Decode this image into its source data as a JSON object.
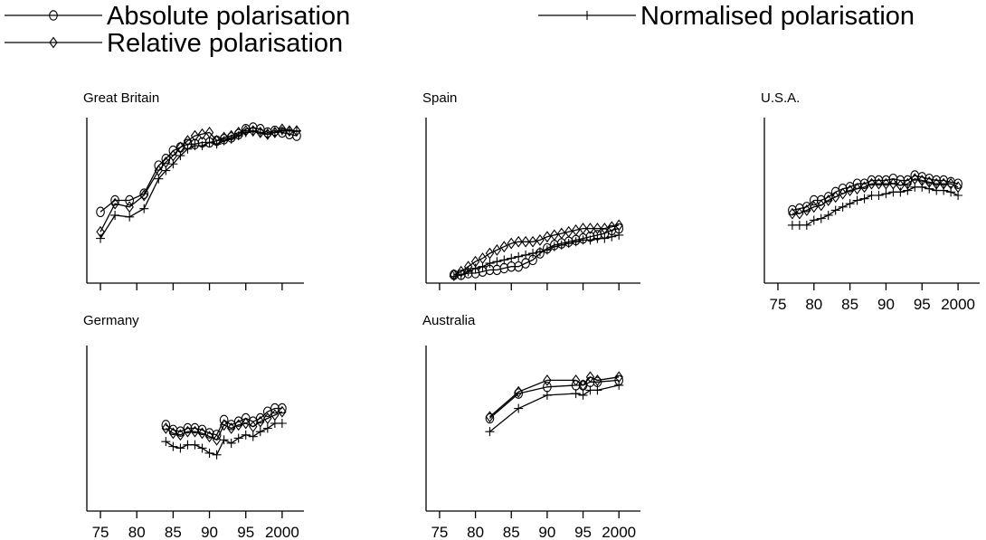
{
  "legend": [
    {
      "name": "Absolute polarisation",
      "marker": "circle"
    },
    {
      "name": "Relative polarisation",
      "marker": "diamond"
    },
    {
      "name": "Normalised polarisation",
      "marker": "plus"
    }
  ],
  "chart_data": [
    {
      "type": "line",
      "title": "Great Britain",
      "xlim": [
        74,
        2003
      ],
      "ylim": [
        0,
        1
      ],
      "xticks": [
        75,
        80,
        85,
        90,
        95,
        2000
      ],
      "xtick_labels": [],
      "series": [
        {
          "name": "Absolute polarisation",
          "marker": "circle",
          "x": [
            75,
            77,
            79,
            81,
            83,
            84,
            85,
            86,
            87,
            88,
            89,
            90,
            91,
            92,
            93,
            94,
            95,
            96,
            97,
            98,
            99,
            2000,
            2001,
            2002
          ],
          "y": [
            0.43,
            0.5,
            0.5,
            0.54,
            0.71,
            0.75,
            0.8,
            0.82,
            0.84,
            0.84,
            0.85,
            0.85,
            0.86,
            0.87,
            0.88,
            0.9,
            0.93,
            0.94,
            0.93,
            0.91,
            0.92,
            0.91,
            0.9,
            0.89
          ]
        },
        {
          "name": "Relative polarisation",
          "marker": "diamond",
          "x": [
            75,
            77,
            79,
            81,
            83,
            84,
            85,
            86,
            87,
            88,
            89,
            90,
            91,
            92,
            93,
            94,
            95,
            96,
            97,
            98,
            99,
            2000,
            2001,
            2002
          ],
          "y": [
            0.31,
            0.48,
            0.46,
            0.53,
            0.68,
            0.73,
            0.77,
            0.82,
            0.86,
            0.89,
            0.9,
            0.91,
            0.86,
            0.88,
            0.89,
            0.91,
            0.92,
            0.92,
            0.91,
            0.9,
            0.91,
            0.93,
            0.92,
            0.92
          ]
        },
        {
          "name": "Normalised polarisation",
          "marker": "plus",
          "x": [
            75,
            77,
            79,
            81,
            83,
            84,
            85,
            86,
            87,
            88,
            89,
            90,
            91,
            92,
            93,
            94,
            95,
            96,
            97,
            98,
            99,
            2000,
            2001,
            2002
          ],
          "y": [
            0.27,
            0.41,
            0.4,
            0.45,
            0.63,
            0.68,
            0.72,
            0.77,
            0.81,
            0.83,
            0.83,
            0.85,
            0.84,
            0.86,
            0.87,
            0.89,
            0.91,
            0.92,
            0.91,
            0.9,
            0.91,
            0.92,
            0.92,
            0.92
          ]
        }
      ]
    },
    {
      "type": "line",
      "title": "Spain",
      "xlim": [
        74,
        2003
      ],
      "ylim": [
        0,
        1
      ],
      "xticks": [
        75,
        80,
        85,
        90,
        95,
        2000
      ],
      "xtick_labels": [],
      "series": [
        {
          "name": "Absolute polarisation",
          "marker": "circle",
          "x": [
            77,
            78,
            79,
            80,
            81,
            82,
            83,
            84,
            85,
            86,
            87,
            88,
            89,
            90,
            91,
            92,
            93,
            94,
            95,
            96,
            97,
            98,
            99,
            2000
          ],
          "y": [
            0.05,
            0.05,
            0.06,
            0.06,
            0.07,
            0.08,
            0.08,
            0.09,
            0.1,
            0.1,
            0.12,
            0.14,
            0.18,
            0.21,
            0.23,
            0.24,
            0.25,
            0.26,
            0.27,
            0.28,
            0.29,
            0.3,
            0.32,
            0.33
          ]
        },
        {
          "name": "Relative polarisation",
          "marker": "diamond",
          "x": [
            77,
            78,
            79,
            80,
            81,
            82,
            83,
            84,
            85,
            86,
            87,
            88,
            89,
            90,
            91,
            92,
            93,
            94,
            95,
            96,
            97,
            98,
            99,
            2000
          ],
          "y": [
            0.05,
            0.07,
            0.1,
            0.13,
            0.15,
            0.18,
            0.2,
            0.22,
            0.24,
            0.25,
            0.25,
            0.25,
            0.26,
            0.28,
            0.29,
            0.3,
            0.31,
            0.32,
            0.33,
            0.33,
            0.33,
            0.33,
            0.34,
            0.35
          ]
        },
        {
          "name": "Normalised polarisation",
          "marker": "plus",
          "x": [
            77,
            78,
            79,
            80,
            81,
            82,
            83,
            84,
            85,
            86,
            87,
            88,
            89,
            90,
            91,
            92,
            93,
            94,
            95,
            96,
            97,
            98,
            99,
            2000
          ],
          "y": [
            0.04,
            0.05,
            0.07,
            0.09,
            0.1,
            0.12,
            0.13,
            0.14,
            0.15,
            0.16,
            0.17,
            0.18,
            0.19,
            0.2,
            0.22,
            0.23,
            0.24,
            0.25,
            0.26,
            0.26,
            0.27,
            0.27,
            0.28,
            0.29
          ]
        }
      ]
    },
    {
      "type": "line",
      "title": "U.S.A.",
      "xlim": [
        74,
        2003
      ],
      "ylim": [
        0,
        1
      ],
      "xticks": [
        75,
        80,
        85,
        90,
        95,
        2000
      ],
      "xtick_labels": [
        "75",
        "80",
        "85",
        "90",
        "95",
        "2000"
      ],
      "series": [
        {
          "name": "Absolute polarisation",
          "marker": "circle",
          "x": [
            77,
            78,
            79,
            80,
            81,
            82,
            83,
            84,
            85,
            86,
            87,
            88,
            89,
            90,
            91,
            92,
            93,
            94,
            95,
            96,
            97,
            98,
            99,
            2000
          ],
          "y": [
            0.44,
            0.45,
            0.46,
            0.5,
            0.5,
            0.52,
            0.55,
            0.57,
            0.58,
            0.6,
            0.6,
            0.62,
            0.62,
            0.62,
            0.63,
            0.62,
            0.62,
            0.65,
            0.64,
            0.63,
            0.62,
            0.62,
            0.61,
            0.6
          ]
        },
        {
          "name": "Relative polarisation",
          "marker": "diamond",
          "x": [
            77,
            78,
            79,
            80,
            81,
            82,
            83,
            84,
            85,
            86,
            87,
            88,
            89,
            90,
            91,
            92,
            93,
            94,
            95,
            96,
            97,
            98,
            99,
            2000
          ],
          "y": [
            0.42,
            0.42,
            0.44,
            0.46,
            0.47,
            0.5,
            0.52,
            0.54,
            0.56,
            0.57,
            0.58,
            0.6,
            0.6,
            0.6,
            0.6,
            0.59,
            0.6,
            0.63,
            0.62,
            0.61,
            0.6,
            0.6,
            0.6,
            0.58
          ]
        },
        {
          "name": "Normalised polarisation",
          "marker": "plus",
          "x": [
            77,
            78,
            79,
            80,
            81,
            82,
            83,
            84,
            85,
            86,
            87,
            88,
            89,
            90,
            91,
            92,
            93,
            94,
            95,
            96,
            97,
            98,
            99,
            2000
          ],
          "y": [
            0.35,
            0.35,
            0.35,
            0.38,
            0.39,
            0.41,
            0.44,
            0.46,
            0.48,
            0.5,
            0.51,
            0.53,
            0.53,
            0.54,
            0.55,
            0.55,
            0.56,
            0.58,
            0.58,
            0.57,
            0.56,
            0.56,
            0.55,
            0.53
          ]
        }
      ]
    },
    {
      "type": "line",
      "title": "Germany",
      "xlim": [
        74,
        2003
      ],
      "ylim": [
        0,
        1
      ],
      "xticks": [
        75,
        80,
        85,
        90,
        95,
        2000
      ],
      "xtick_labels": [
        "75",
        "80",
        "85",
        "90",
        "95",
        "2000"
      ],
      "series": [
        {
          "name": "Absolute polarisation",
          "marker": "circle",
          "x": [
            84,
            85,
            86,
            87,
            88,
            89,
            90,
            91,
            92,
            93,
            94,
            95,
            96,
            97,
            98,
            99,
            2000
          ],
          "y": [
            0.52,
            0.49,
            0.48,
            0.5,
            0.5,
            0.49,
            0.47,
            0.46,
            0.55,
            0.52,
            0.54,
            0.56,
            0.54,
            0.56,
            0.6,
            0.62,
            0.62
          ]
        },
        {
          "name": "Relative polarisation",
          "marker": "diamond",
          "x": [
            84,
            85,
            86,
            87,
            88,
            89,
            90,
            91,
            92,
            93,
            94,
            95,
            96,
            97,
            98,
            99,
            2000
          ],
          "y": [
            0.5,
            0.47,
            0.46,
            0.48,
            0.48,
            0.47,
            0.45,
            0.43,
            0.52,
            0.5,
            0.52,
            0.53,
            0.51,
            0.54,
            0.56,
            0.58,
            0.6
          ]
        },
        {
          "name": "Normalised polarisation",
          "marker": "plus",
          "x": [
            84,
            85,
            86,
            87,
            88,
            89,
            90,
            91,
            92,
            93,
            94,
            95,
            96,
            97,
            98,
            99,
            2000
          ],
          "y": [
            0.42,
            0.39,
            0.38,
            0.4,
            0.4,
            0.38,
            0.35,
            0.34,
            0.43,
            0.41,
            0.44,
            0.46,
            0.45,
            0.48,
            0.5,
            0.53,
            0.53
          ]
        }
      ]
    },
    {
      "type": "line",
      "title": "Australia",
      "xlim": [
        74,
        2003
      ],
      "ylim": [
        0,
        1
      ],
      "xticks": [
        75,
        80,
        85,
        90,
        95,
        2000
      ],
      "xtick_labels": [
        "75",
        "80",
        "85",
        "90",
        "95",
        "2000"
      ],
      "series": [
        {
          "name": "Absolute polarisation",
          "marker": "circle",
          "x": [
            82,
            86,
            90,
            94,
            95,
            96,
            97,
            2000
          ],
          "y": [
            0.56,
            0.71,
            0.75,
            0.76,
            0.76,
            0.78,
            0.78,
            0.79
          ]
        },
        {
          "name": "Relative polarisation",
          "marker": "diamond",
          "x": [
            82,
            86,
            90,
            94,
            95,
            96,
            97,
            2000
          ],
          "y": [
            0.57,
            0.72,
            0.79,
            0.79,
            0.76,
            0.81,
            0.79,
            0.81
          ]
        },
        {
          "name": "Normalised polarisation",
          "marker": "plus",
          "x": [
            82,
            86,
            90,
            94,
            95,
            96,
            97,
            2000
          ],
          "y": [
            0.48,
            0.62,
            0.7,
            0.71,
            0.7,
            0.73,
            0.73,
            0.76
          ]
        }
      ]
    }
  ]
}
